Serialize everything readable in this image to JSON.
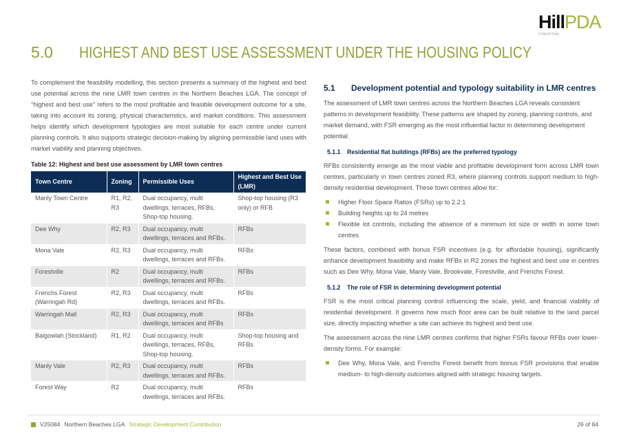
{
  "header": {
    "logo_main": "Hill",
    "logo_accent": "PDA",
    "logo_sub": "CONSULTING"
  },
  "title": {
    "number": "5.0",
    "text": "HIGHEST AND BEST USE ASSESSMENT UNDER THE HOUSING POLICY"
  },
  "left": {
    "intro": "To complement the feasibility modelling, this section presents a summary of the highest and best use potential across the nine LMR town centres in the Northern Beaches LGA. The concept of \"highest and best use\" refers to the most profitable and feasible development outcome for a site, taking into account its zoning, physical characteristics, and market conditions.  This assessment helps identify which development typologies are most suitable for each centre under current planning controls. It also supports strategic decision-making by aligning permissible land uses with market viability and planning objectives.",
    "table_caption": "Table 12: Highest and best use assessment by LMR town centres",
    "table": {
      "headers": [
        "Town Centre",
        "Zoning",
        "Permissible Uses",
        "Highest and Best Use (LMR)"
      ],
      "rows": [
        [
          "Manly Town Centre",
          "R1, R2, R3",
          "Dual occupancy, multi dwellings, terraces, RFBs, Shop-top housing.",
          "Shop-top housing (R3 only) or RFB"
        ],
        [
          "Dee Why",
          "R2, R3",
          "Dual occupancy, multi dwellings, terraces and RFBs.",
          "RFBs"
        ],
        [
          "Mona Vale",
          "R2, R3",
          "Dual occupancy, multi dwellings, terraces and RFBs.",
          "RFBs"
        ],
        [
          "Forestville",
          "R2",
          "Dual occupancy, multi dwellings, terraces and RFBs.",
          "RFBs"
        ],
        [
          "Frenchs Forest (Warringah Rd)",
          "R2, R3",
          "Dual occupancy, multi dwellings, terraces and RFBs.",
          "RFBs"
        ],
        [
          "Warringah Mall",
          "R2, R3",
          "Dual occupancy, multi dwellings, terraces and RFBs",
          "RFBs"
        ],
        [
          "Balgowlah (Stockland)",
          "R1, R2",
          "Dual occupancy, multi dwellings, terraces, RFBs, Shop-top housing.",
          "Shop-top housing and RFBs"
        ],
        [
          "Manly Vale",
          "R2, R3",
          "Dual occupancy, multi dwellings, terraces and RFBs.",
          "RFBs"
        ],
        [
          "Forest Way",
          "R2",
          "Dual occupancy, multi dwellings, terraces and RFBs.",
          "RFBs"
        ]
      ]
    }
  },
  "right": {
    "h51_num": "5.1",
    "h51": "Development potential and typology suitability in LMR centres",
    "p1": "The assessment of LMR town centres across the Northern Beaches LGA reveals consistent patterns in development feasibility. These patterns are shaped by zoning, planning controls, and market demand, with FSR emerging as the most influential factor in determining development potential.",
    "h511_num": "5.1.1",
    "h511": "Residential flat buildings (RFBs) are the preferred typology",
    "p2": "RFBs consistently emerge as the most viable and profitable development form across LMR town centres, particularly in town centres zoned R3, where planning controls support medium to high-density residential development. These town centres allow for:",
    "bullets1": [
      "Higher Floor Space Ratios (FSRs) up to 2.2:1",
      "Building heights up to 24 metres",
      "Flexible lot controls, including the absence of a minimum lot size or width in some town centres"
    ],
    "p3": "These factors, combined with bonus FSR incentives (e.g. for affordable housing), significantly enhance development feasibility and make RFBs in R2 zones the highest and best use in centres such as Dee Why, Mona Vale, Manly Vale, Brookvale, Forestville, and Frenchs Forest.",
    "h512_num": "5.1.2",
    "h512": "The role of FSR in determining development potential",
    "p4": "FSR is the most critical planning control influencing the scale, yield, and financial viability of residential development. It governs how much floor area can be built relative to the land parcel size, directly impacting whether a site can achieve its highest and best use.",
    "p5": "The assessment across the nine LMR centres confirms that higher FSRs favour RFBs over lower-density forms. For example:",
    "bullets2": [
      "Dee Why, Mona Vale, and Frenchs Forest benefit from bonus FSR provisions that enable medium- to high-density outcomes aligned with strategic housing targets."
    ]
  },
  "footer": {
    "code": "V25084",
    "project": "Northern Beaches LGA",
    "doc": "Strategic Development Contribution",
    "page": "26 of 84"
  }
}
